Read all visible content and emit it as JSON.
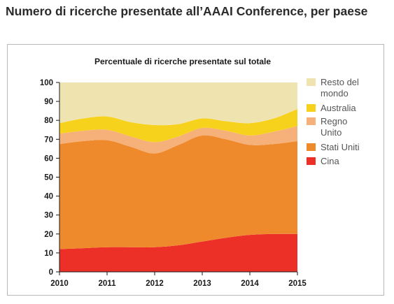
{
  "header": {
    "title": "Numero di ricerche presentate all’AAAI Conference, per paese"
  },
  "chart_data": {
    "type": "area",
    "stacked": true,
    "title": "Percentuale di ricerche presentate sul totale",
    "xlabel": "",
    "ylabel": "",
    "x": [
      2010,
      2010.5,
      2011,
      2011.5,
      2012,
      2012.5,
      2013,
      2013.5,
      2014,
      2014.5,
      2015
    ],
    "ylim": [
      0,
      100
    ],
    "xlim": [
      2010,
      2015
    ],
    "x_ticks": [
      "2010",
      "2011",
      "2012",
      "2013",
      "2014",
      "2015"
    ],
    "y_ticks": [
      "0",
      "10",
      "20",
      "30",
      "40",
      "50",
      "60",
      "70",
      "80",
      "90",
      "100"
    ],
    "grid": false,
    "legend_position": "right",
    "series": [
      {
        "name": "Cina",
        "color": "#ec3028",
        "values": [
          12,
          12.5,
          13,
          13,
          13,
          14,
          16,
          18,
          19.5,
          20,
          20
        ]
      },
      {
        "name": "Stati Uniti",
        "color": "#ef8a2c",
        "values": [
          55.5,
          56.5,
          56.5,
          53,
          49.5,
          53,
          56,
          52,
          47.5,
          47.5,
          49
        ]
      },
      {
        "name": "Regno Unito",
        "color": "#f6b07a",
        "values": [
          5.5,
          5.5,
          5.5,
          5.5,
          6,
          4.5,
          4,
          4.5,
          5,
          6.5,
          8
        ]
      },
      {
        "name": "Australia",
        "color": "#f6d21c",
        "values": [
          5.5,
          6.5,
          7,
          7.5,
          9,
          6.5,
          5,
          5,
          6.5,
          7,
          9
        ]
      },
      {
        "name": "Resto del mondo",
        "color": "#efe4b0",
        "values": [
          21.5,
          19,
          18,
          21,
          22.5,
          22,
          19,
          20.5,
          21.5,
          19,
          14
        ]
      }
    ],
    "legend": [
      {
        "lines": [
          "Resto del",
          "mondo"
        ],
        "color": "#efe4b0"
      },
      {
        "lines": [
          "Australia"
        ],
        "color": "#f6d21c"
      },
      {
        "lines": [
          "Regno",
          "Unito"
        ],
        "color": "#f6b07a"
      },
      {
        "lines": [
          "Stati Uniti"
        ],
        "color": "#ef8a2c"
      },
      {
        "lines": [
          "Cina"
        ],
        "color": "#ec3028"
      }
    ]
  }
}
